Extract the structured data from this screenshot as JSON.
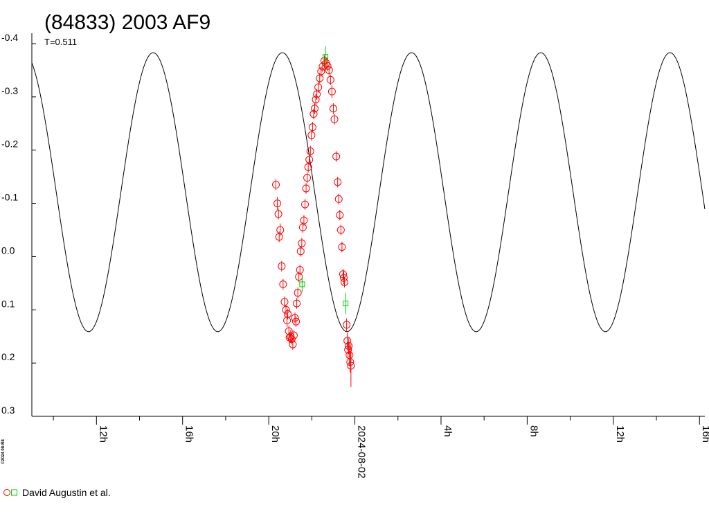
{
  "chart_data": {
    "type": "scatter",
    "title": "(84833) 2003 AF9",
    "subtitle": "T=0.511",
    "copyright": "©2024 08-R8",
    "ylim": [
      0.3,
      -0.4
    ],
    "y_inverted": true,
    "xlim": [
      "2024-08-01T09:00",
      "2024-08-02T16:15"
    ],
    "y_ticks": [
      "-0.4",
      "-0.3",
      "-0.2",
      "-0.1",
      "0.0",
      "0.1",
      "0.2",
      "0.3"
    ],
    "x_ticks": [
      {
        "t": "2024-08-01T10:00",
        "label": ""
      },
      {
        "t": "2024-08-01T12:00",
        "label": "12h"
      },
      {
        "t": "2024-08-01T14:00",
        "label": ""
      },
      {
        "t": "2024-08-01T16:00",
        "label": "16h"
      },
      {
        "t": "2024-08-01T18:00",
        "label": ""
      },
      {
        "t": "2024-08-01T20:00",
        "label": "20h"
      },
      {
        "t": "2024-08-01T22:00",
        "label": ""
      },
      {
        "t": "2024-08-02T00:00",
        "label": "2024-08-02"
      },
      {
        "t": "2024-08-02T02:00",
        "label": ""
      },
      {
        "t": "2024-08-02T04:00",
        "label": "4h"
      },
      {
        "t": "2024-08-02T06:00",
        "label": ""
      },
      {
        "t": "2024-08-02T08:00",
        "label": "8h"
      },
      {
        "t": "2024-08-02T10:00",
        "label": ""
      },
      {
        "t": "2024-08-02T12:00",
        "label": "12h"
      },
      {
        "t": "2024-08-02T14:00",
        "label": ""
      },
      {
        "t": "2024-08-02T16:00",
        "label": "16h"
      }
    ],
    "model_curve": {
      "min_mag": -0.383,
      "max_mag": 0.141,
      "period_hours": 6.0,
      "peak_time": "2024-08-02T02:38",
      "color": "#000000"
    },
    "series": [
      {
        "name": "David Augustin et al.",
        "marker": "circle",
        "color": "#ff0000",
        "points": [
          {
            "t": "2024-08-01T20:20",
            "y": -0.135,
            "err": 0.01
          },
          {
            "t": "2024-08-01T20:24",
            "y": -0.1,
            "err": 0.012
          },
          {
            "t": "2024-08-01T20:27",
            "y": -0.08,
            "err": 0.01
          },
          {
            "t": "2024-08-01T20:29",
            "y": -0.037,
            "err": 0.01
          },
          {
            "t": "2024-08-01T20:32",
            "y": -0.05,
            "err": 0.012
          },
          {
            "t": "2024-08-01T20:36",
            "y": 0.018,
            "err": 0.01
          },
          {
            "t": "2024-08-01T20:40",
            "y": 0.052,
            "err": 0.01
          },
          {
            "t": "2024-08-01T20:44",
            "y": 0.085,
            "err": 0.01
          },
          {
            "t": "2024-08-01T20:48",
            "y": 0.1,
            "err": 0.01
          },
          {
            "t": "2024-08-01T20:51",
            "y": 0.12,
            "err": 0.012
          },
          {
            "t": "2024-08-01T20:53",
            "y": 0.108,
            "err": 0.01
          },
          {
            "t": "2024-08-01T20:56",
            "y": 0.14,
            "err": 0.01
          },
          {
            "t": "2024-08-01T20:58",
            "y": 0.152,
            "err": 0.01
          },
          {
            "t": "2024-08-01T21:01",
            "y": 0.15,
            "err": 0.012
          },
          {
            "t": "2024-08-01T21:04",
            "y": 0.155,
            "err": 0.01
          },
          {
            "t": "2024-08-01T21:07",
            "y": 0.165,
            "err": 0.01
          },
          {
            "t": "2024-08-01T21:10",
            "y": 0.148,
            "err": 0.01
          },
          {
            "t": "2024-08-01T21:13",
            "y": 0.115,
            "err": 0.01
          },
          {
            "t": "2024-08-01T21:16",
            "y": 0.122,
            "err": 0.01
          },
          {
            "t": "2024-08-01T21:18",
            "y": 0.088,
            "err": 0.01
          },
          {
            "t": "2024-08-01T21:21",
            "y": 0.068,
            "err": 0.01
          },
          {
            "t": "2024-08-01T21:24",
            "y": 0.038,
            "err": 0.01
          },
          {
            "t": "2024-08-01T21:27",
            "y": 0.025,
            "err": 0.01
          },
          {
            "t": "2024-08-01T21:29",
            "y": -0.01,
            "err": 0.01
          },
          {
            "t": "2024-08-01T21:32",
            "y": -0.025,
            "err": 0.01
          },
          {
            "t": "2024-08-01T21:35",
            "y": -0.055,
            "err": 0.01
          },
          {
            "t": "2024-08-01T21:38",
            "y": -0.068,
            "err": 0.01
          },
          {
            "t": "2024-08-01T21:41",
            "y": -0.098,
            "err": 0.01
          },
          {
            "t": "2024-08-01T21:44",
            "y": -0.128,
            "err": 0.01
          },
          {
            "t": "2024-08-01T21:47",
            "y": -0.148,
            "err": 0.01
          },
          {
            "t": "2024-08-01T21:50",
            "y": -0.168,
            "err": 0.01
          },
          {
            "t": "2024-08-01T21:53",
            "y": -0.182,
            "err": 0.01
          },
          {
            "t": "2024-08-01T21:56",
            "y": -0.198,
            "err": 0.01
          },
          {
            "t": "2024-08-01T21:59",
            "y": -0.228,
            "err": 0.01
          },
          {
            "t": "2024-08-01T22:02",
            "y": -0.243,
            "err": 0.01
          },
          {
            "t": "2024-08-01T22:05",
            "y": -0.268,
            "err": 0.01
          },
          {
            "t": "2024-08-01T22:08",
            "y": -0.278,
            "err": 0.01
          },
          {
            "t": "2024-08-01T22:11",
            "y": -0.295,
            "err": 0.01
          },
          {
            "t": "2024-08-01T22:14",
            "y": -0.305,
            "err": 0.01
          },
          {
            "t": "2024-08-01T22:18",
            "y": -0.318,
            "err": 0.01
          },
          {
            "t": "2024-08-01T22:22",
            "y": -0.335,
            "err": 0.01
          },
          {
            "t": "2024-08-01T22:26",
            "y": -0.348,
            "err": 0.01
          },
          {
            "t": "2024-08-01T22:30",
            "y": -0.357,
            "err": 0.01
          },
          {
            "t": "2024-08-01T22:35",
            "y": -0.368,
            "err": 0.01
          },
          {
            "t": "2024-08-01T22:40",
            "y": -0.363,
            "err": 0.01
          },
          {
            "t": "2024-08-01T22:44",
            "y": -0.358,
            "err": 0.01
          },
          {
            "t": "2024-08-01T22:48",
            "y": -0.35,
            "err": 0.01
          },
          {
            "t": "2024-08-01T22:52",
            "y": -0.332,
            "err": 0.01
          },
          {
            "t": "2024-08-01T22:56",
            "y": -0.31,
            "err": 0.012
          },
          {
            "t": "2024-08-01T23:00",
            "y": -0.278,
            "err": 0.01
          },
          {
            "t": "2024-08-01T23:03",
            "y": -0.258,
            "err": 0.01
          },
          {
            "t": "2024-08-01T23:08",
            "y": -0.188,
            "err": 0.01
          },
          {
            "t": "2024-08-01T23:12",
            "y": -0.14,
            "err": 0.01
          },
          {
            "t": "2024-08-01T23:15",
            "y": -0.108,
            "err": 0.01
          },
          {
            "t": "2024-08-01T23:18",
            "y": -0.078,
            "err": 0.01
          },
          {
            "t": "2024-08-01T23:21",
            "y": -0.05,
            "err": 0.01
          },
          {
            "t": "2024-08-01T23:24",
            "y": -0.018,
            "err": 0.01
          },
          {
            "t": "2024-08-01T23:27",
            "y": 0.033,
            "err": 0.01
          },
          {
            "t": "2024-08-01T23:29",
            "y": 0.04,
            "err": 0.012
          },
          {
            "t": "2024-08-01T23:31",
            "y": 0.048,
            "err": 0.01
          },
          {
            "t": "2024-08-01T23:37",
            "y": 0.128,
            "err": 0.012
          },
          {
            "t": "2024-08-01T23:39",
            "y": 0.158,
            "err": 0.015
          },
          {
            "t": "2024-08-01T23:41",
            "y": 0.175,
            "err": 0.015
          },
          {
            "t": "2024-08-01T23:43",
            "y": 0.168,
            "err": 0.015
          },
          {
            "t": "2024-08-01T23:45",
            "y": 0.185,
            "err": 0.02
          },
          {
            "t": "2024-08-01T23:47",
            "y": 0.198,
            "err": 0.02
          },
          {
            "t": "2024-08-01T23:49",
            "y": 0.205,
            "err": 0.04
          }
        ]
      },
      {
        "name": "",
        "marker": "square",
        "color": "#00cc00",
        "points": [
          {
            "t": "2024-08-01T21:33",
            "y": 0.052,
            "err": 0.015
          },
          {
            "t": "2024-08-01T22:38",
            "y": -0.375,
            "err": 0.02
          },
          {
            "t": "2024-08-01T23:34",
            "y": 0.088,
            "err": 0.02
          }
        ]
      }
    ],
    "legend": {
      "label": "David Augustin et al.",
      "placement": "bottom-left"
    },
    "grid": false
  }
}
